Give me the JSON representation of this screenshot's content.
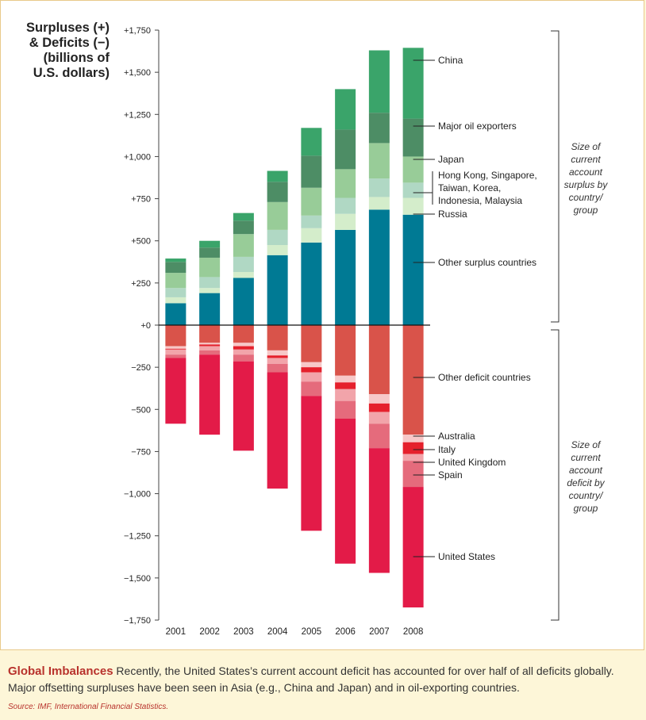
{
  "chart_data": {
    "type": "stacked-bar",
    "ylabel_lines": [
      "Surpluses (+)",
      "& Deficits (−)",
      "(billions of",
      "U.S. dollars)"
    ],
    "ylim": [
      -1750,
      1750
    ],
    "yticks": [
      1750,
      1500,
      1250,
      1000,
      750,
      500,
      250,
      0,
      -250,
      -500,
      -750,
      -1000,
      -1250,
      -1500,
      -1750
    ],
    "ytick_labels": [
      "+1,750",
      "+1,500",
      "+1,250",
      "+1,000",
      "+750",
      "+500",
      "+250",
      "+0",
      "−250",
      "−500",
      "−750",
      "−1,000",
      "−1,250",
      "−1,500",
      "−1,750"
    ],
    "categories": [
      "2001",
      "2002",
      "2003",
      "2004",
      "2005",
      "2006",
      "2007",
      "2008"
    ],
    "surplus_series": [
      {
        "name": "Other surplus countries",
        "color": "#007a94",
        "values": [
          130,
          190,
          280,
          415,
          490,
          565,
          685,
          655
        ]
      },
      {
        "name": "Russia",
        "color": "#d4edcb",
        "values": [
          35,
          30,
          35,
          60,
          85,
          95,
          75,
          100
        ]
      },
      {
        "name": "Hong Kong, Singapore, Taiwan, Korea, Indonesia, Malaysia",
        "color": "#b0d8c4",
        "values": [
          55,
          65,
          90,
          90,
          75,
          95,
          110,
          90
        ]
      },
      {
        "name": "Japan",
        "color": "#98cc98",
        "values": [
          90,
          115,
          135,
          165,
          165,
          170,
          210,
          155
        ]
      },
      {
        "name": "Major oil exporters",
        "color": "#4d8d65",
        "values": [
          65,
          60,
          80,
          120,
          190,
          235,
          180,
          225
        ]
      },
      {
        "name": "China",
        "color": "#3aa46a",
        "values": [
          20,
          40,
          45,
          65,
          165,
          240,
          370,
          420
        ]
      }
    ],
    "deficit_series": [
      {
        "name": "Other deficit countries",
        "color": "#d9534a",
        "values": [
          -125,
          -105,
          -105,
          -150,
          -220,
          -300,
          -410,
          -650
        ]
      },
      {
        "name": "Australia",
        "color": "#f7c8c8",
        "values": [
          -15,
          -10,
          -20,
          -30,
          -30,
          -40,
          -55,
          -45
        ]
      },
      {
        "name": "Italy",
        "color": "#e5202c",
        "values": [
          -5,
          -10,
          -20,
          -15,
          -30,
          -40,
          -50,
          -70
        ]
      },
      {
        "name": "United Kingdom",
        "color": "#f2a4aa",
        "values": [
          -30,
          -25,
          -30,
          -35,
          -55,
          -70,
          -70,
          -40
        ]
      },
      {
        "name": "Spain",
        "color": "#e56b7c",
        "values": [
          -20,
          -25,
          -40,
          -50,
          -85,
          -105,
          -145,
          -155
        ]
      },
      {
        "name": "United States",
        "color": "#e31b48",
        "values": [
          -390,
          -475,
          -530,
          -690,
          -800,
          -860,
          -740,
          -715
        ]
      }
    ],
    "legend_labels": {
      "china": "China",
      "oil": "Major oil exporters",
      "japan": "Japan",
      "asia_lines": [
        "Hong Kong, Singapore,",
        "Taiwan, Korea,",
        "Indonesia, Malaysia"
      ],
      "russia": "Russia",
      "other_surplus": "Other surplus countries",
      "other_deficit": "Other deficit countries",
      "australia": "Australia",
      "italy": "Italy",
      "uk": "United Kingdom",
      "spain": "Spain",
      "us": "United States"
    },
    "bracket_notes": {
      "surplus_lines": [
        "Size of",
        "current",
        "account",
        "surplus by",
        "country/",
        "group"
      ],
      "deficit_lines": [
        "Size of",
        "current",
        "account",
        "deficit by",
        "country/",
        "group"
      ]
    }
  },
  "caption": {
    "title": "Global Imbalances",
    "text": " Recently, the United States’s current account deficit has accounted for over half of all deficits globally. Major offsetting surpluses have been seen in Asia (e.g., China and Japan) and in oil-exporting countries."
  },
  "source": "Source: IMF, International Financial Statistics."
}
